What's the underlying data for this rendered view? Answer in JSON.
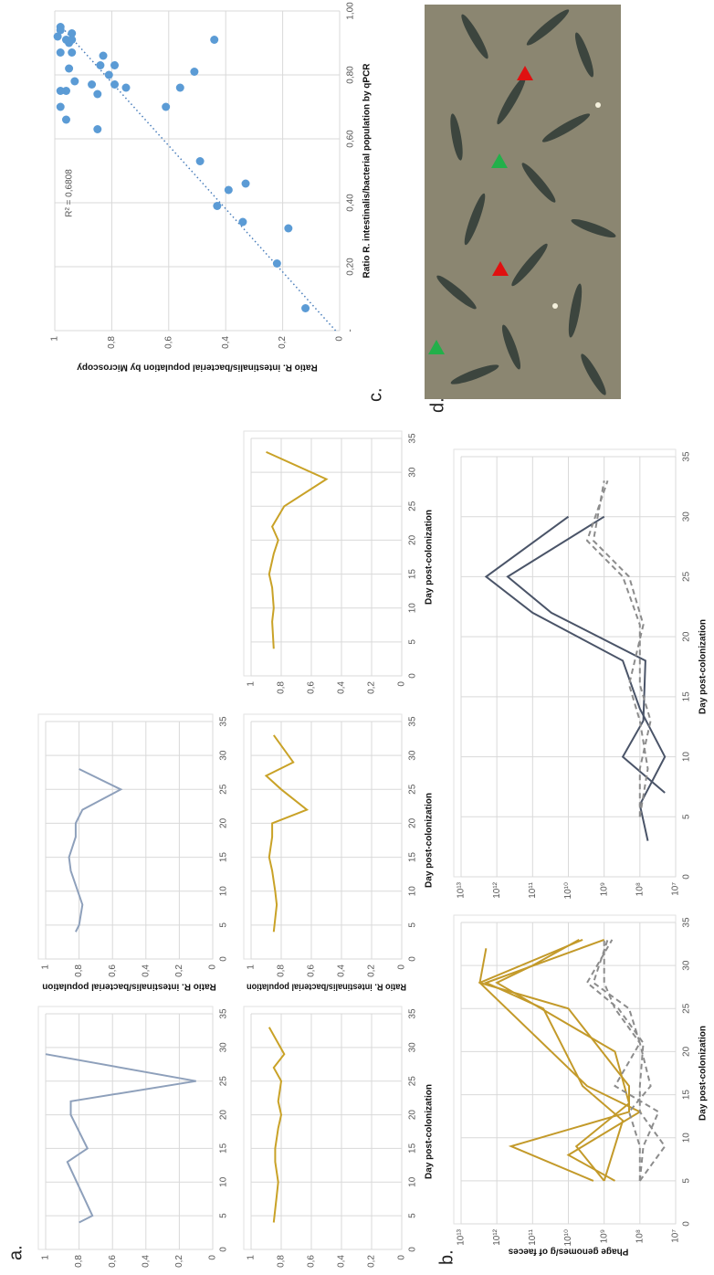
{
  "panel_labels": [
    "a.",
    "b.",
    "c.",
    "d."
  ],
  "chart_data": [
    {
      "type": "line",
      "xlim": [
        0,
        35
      ],
      "xticks": [
        0,
        5,
        10,
        15,
        20,
        25,
        30,
        35
      ],
      "ylim": [
        0,
        1
      ],
      "yticks": [
        0,
        {
          "value": 0.2,
          "label": "0,2"
        },
        {
          "value": 0.4,
          "label": "0,4"
        },
        {
          "value": 0.6,
          "label": "0,6"
        },
        {
          "value": 0.8,
          "label": "0,8"
        },
        1
      ],
      "grid": true,
      "series": [
        {
          "color": "#8ea0bb",
          "x": [
            4,
            5,
            13,
            15,
            20,
            22,
            25,
            29
          ],
          "values": [
            0.8,
            0.72,
            0.87,
            0.75,
            0.85,
            0.85,
            0.1,
            1.0
          ]
        }
      ]
    },
    {
      "type": "line",
      "xlim": [
        0,
        35
      ],
      "xticks": [
        0,
        5,
        10,
        15,
        20,
        25,
        30,
        35
      ],
      "ylim": [
        0,
        1
      ],
      "yticks": [
        0,
        {
          "value": 0.2,
          "label": "0,2"
        },
        {
          "value": 0.4,
          "label": "0,4"
        },
        {
          "value": 0.6,
          "label": "0,6"
        },
        {
          "value": 0.8,
          "label": "0,8"
        },
        1
      ],
      "grid": true,
      "y_label": "Ratio R. intestinalis/bacterial population",
      "series": [
        {
          "color": "#8ea0bb",
          "x": [
            4,
            5,
            8,
            13,
            15,
            18,
            20,
            22,
            25,
            28
          ],
          "values": [
            0.82,
            0.8,
            0.78,
            0.85,
            0.86,
            0.82,
            0.82,
            0.78,
            0.55,
            0.8
          ]
        }
      ]
    },
    {
      "type": "line",
      "xlim": [
        0,
        35
      ],
      "xticks": [
        0,
        5,
        10,
        15,
        20,
        25,
        30,
        35
      ],
      "ylim": [
        0,
        1
      ],
      "yticks": [
        0,
        {
          "value": 0.2,
          "label": "0,2"
        },
        {
          "value": 0.4,
          "label": "0,4"
        },
        {
          "value": 0.6,
          "label": "0,6"
        },
        {
          "value": 0.8,
          "label": "0,8"
        },
        1
      ],
      "grid": true,
      "x_label": "Day post-colonization",
      "series": [
        {
          "color": "#c9a227",
          "x": [
            4,
            8,
            10,
            13,
            15,
            18,
            20,
            22,
            25,
            27,
            29,
            33
          ],
          "values": [
            0.85,
            0.83,
            0.82,
            0.84,
            0.84,
            0.82,
            0.8,
            0.82,
            0.8,
            0.85,
            0.78,
            0.88
          ]
        }
      ]
    },
    {
      "type": "line",
      "xlim": [
        0,
        35
      ],
      "xticks": [
        0,
        5,
        10,
        15,
        20,
        25,
        30,
        35
      ],
      "ylim": [
        0,
        1
      ],
      "yticks": [
        0,
        {
          "value": 0.2,
          "label": "0,2"
        },
        {
          "value": 0.4,
          "label": "0,4"
        },
        {
          "value": 0.6,
          "label": "0,6"
        },
        {
          "value": 0.8,
          "label": "0,8"
        },
        1
      ],
      "grid": true,
      "x_label": "Day post-colonization",
      "y_label": "Ratio R. intestinalis/bacterial population",
      "series": [
        {
          "color": "#c9a227",
          "x": [
            4,
            8,
            10,
            13,
            15,
            18,
            20,
            22,
            25,
            27,
            29,
            33
          ],
          "values": [
            0.85,
            0.83,
            0.84,
            0.86,
            0.88,
            0.86,
            0.86,
            0.63,
            0.8,
            0.9,
            0.72,
            0.85
          ]
        }
      ]
    },
    {
      "type": "line",
      "xlim": [
        0,
        35
      ],
      "xticks": [
        0,
        5,
        10,
        15,
        20,
        25,
        30,
        35
      ],
      "ylim": [
        0,
        1
      ],
      "yticks": [
        0,
        {
          "value": 0.2,
          "label": "0,2"
        },
        {
          "value": 0.4,
          "label": "0,4"
        },
        {
          "value": 0.6,
          "label": "0,6"
        },
        {
          "value": 0.8,
          "label": "0,8"
        },
        1
      ],
      "grid": true,
      "x_label": "Day post-colonization",
      "series": [
        {
          "color": "#c9a227",
          "x": [
            4,
            8,
            10,
            13,
            15,
            18,
            20,
            22,
            25,
            29,
            33
          ],
          "values": [
            0.85,
            0.86,
            0.85,
            0.86,
            0.88,
            0.85,
            0.82,
            0.86,
            0.78,
            0.5,
            0.9
          ]
        }
      ]
    },
    {
      "type": "line",
      "ylog": true,
      "xlim": [
        0,
        35
      ],
      "xticks": [
        0,
        5,
        10,
        15,
        20,
        25,
        30,
        35
      ],
      "ylim": [
        10000000.0,
        10000000000000.0
      ],
      "yticks": [
        {
          "value": 10000000.0,
          "label": "10⁷"
        },
        {
          "value": 100000000.0,
          "label": "10⁸"
        },
        {
          "value": 1000000000.0,
          "label": "10⁹"
        },
        {
          "value": 10000000000.0,
          "label": "10¹⁰"
        },
        {
          "value": 100000000000.0,
          "label": "10¹¹"
        },
        {
          "value": 1000000000000.0,
          "label": "10¹²"
        },
        {
          "value": 10000000000000.0,
          "label": "10¹³"
        }
      ],
      "grid": true,
      "x_label": "Day post-colonization",
      "y_label": "Phage genomes/g of faeces",
      "series": [
        {
          "color": "#c39a2a",
          "x": [
            5,
            9,
            13,
            16,
            25,
            28,
            32
          ],
          "values": [
            2000000000.0,
            400000000000.0,
            200000000.0,
            200000000.0,
            10000000000.0,
            3000000000000.0,
            2000000000000.0
          ]
        },
        {
          "color": "#c39a2a",
          "x": [
            5,
            8,
            13,
            16,
            28,
            33
          ],
          "values": [
            500000000.0,
            10000000000.0,
            100000000.0,
            3000000000.0,
            3000000000000.0,
            4000000000.0
          ]
        },
        {
          "color": "#c39a2a",
          "x": [
            5,
            9,
            14,
            20,
            28,
            30,
            33
          ],
          "values": [
            1000000000.0,
            6000000000.0,
            200000000.0,
            500000000.0,
            1000000000000.0,
            100000000000.0,
            5000000000.0
          ]
        },
        {
          "color": "#c39a2a",
          "x": [
            5,
            12,
            16,
            25,
            28,
            33
          ],
          "values": [
            1000000000.0,
            300000000.0,
            4000000000.0,
            50000000000.0,
            2000000000000.0,
            1000000000.0
          ]
        },
        {
          "color": "#8c8c8c",
          "style": "dashed",
          "x": [
            5,
            9,
            13,
            16,
            21,
            25,
            28,
            33
          ],
          "values": [
            100000000.0,
            20000000.0,
            100000000.0,
            100000000.0,
            80000000.0,
            400000000.0,
            3000000000.0,
            600000000.0
          ]
        },
        {
          "color": "#8c8c8c",
          "style": "dashed",
          "x": [
            5,
            9,
            13,
            16,
            21,
            25,
            28,
            33
          ],
          "values": [
            100000000.0,
            80000000.0,
            30000000.0,
            500000000.0,
            100000000.0,
            200000000.0,
            2000000000.0,
            800000000.0
          ]
        },
        {
          "color": "#8c8c8c",
          "style": "dashed",
          "x": [
            5,
            9,
            13,
            16,
            21,
            25,
            28,
            33
          ],
          "values": [
            100000000.0,
            100000000.0,
            200000000.0,
            50000000.0,
            100000000.0,
            500000000.0,
            1000000000.0,
            1000000000.0
          ]
        }
      ]
    },
    {
      "type": "line",
      "ylog": true,
      "xlim": [
        0,
        35
      ],
      "xticks": [
        0,
        5,
        10,
        15,
        20,
        25,
        30,
        35
      ],
      "ylim": [
        10000000.0,
        10000000000000.0
      ],
      "yticks": [
        {
          "value": 10000000.0,
          "label": "10⁷"
        },
        {
          "value": 100000000.0,
          "label": "10⁸"
        },
        {
          "value": 1000000000.0,
          "label": "10⁹"
        },
        {
          "value": 10000000000.0,
          "label": "10¹⁰"
        },
        {
          "value": 100000000000.0,
          "label": "10¹¹"
        },
        {
          "value": 1000000000000.0,
          "label": "10¹²"
        },
        {
          "value": 10000000000000.0,
          "label": "10¹³"
        }
      ],
      "grid": true,
      "x_label": "Day post-colonization",
      "series": [
        {
          "color": "#4a5468",
          "x": [
            3,
            6,
            10,
            14,
            18,
            22,
            25,
            30
          ],
          "values": [
            60000000.0,
            100000000.0,
            20000000.0,
            100000000.0,
            300000000.0,
            100000000000.0,
            2000000000000.0,
            10000000000.0
          ]
        },
        {
          "color": "#4a5468",
          "x": [
            7,
            10,
            13,
            18,
            22,
            25,
            30
          ],
          "values": [
            20000000.0,
            300000000.0,
            80000000.0,
            70000000.0,
            30000000000.0,
            500000000000.0,
            1000000000.0
          ]
        },
        {
          "color": "#8c8c8c",
          "style": "dashed",
          "x": [
            5,
            9,
            13,
            16,
            21,
            25,
            28,
            33
          ],
          "values": [
            100000000.0,
            100000000.0,
            50000000.0,
            100000000.0,
            100000000.0,
            300000000.0,
            3000000000.0,
            800000000.0
          ]
        },
        {
          "color": "#8c8c8c",
          "style": "dashed",
          "x": [
            5,
            9,
            13,
            16,
            21,
            25,
            28,
            33
          ],
          "values": [
            100000000.0,
            60000000.0,
            100000000.0,
            200000000.0,
            80000000.0,
            200000000.0,
            2000000000.0,
            1000000000.0
          ]
        }
      ]
    },
    {
      "type": "scatter",
      "color": "#5b9bd5",
      "grid": true,
      "xlim": [
        0,
        1
      ],
      "xticks": [
        {
          "value": 0,
          "label": "-"
        },
        {
          "value": 0.2,
          "label": "0,20"
        },
        {
          "value": 0.4,
          "label": "0,40"
        },
        {
          "value": 0.6,
          "label": "0,60"
        },
        {
          "value": 0.8,
          "label": "0,80"
        },
        {
          "value": 1,
          "label": "1,00"
        }
      ],
      "ylim": [
        0,
        1
      ],
      "yticks": [
        0,
        {
          "value": 0.2,
          "label": "0,2"
        },
        {
          "value": 0.4,
          "label": "0,4"
        },
        {
          "value": 0.6,
          "label": "0,6"
        },
        {
          "value": 0.8,
          "label": "0,8"
        },
        1
      ],
      "x_label": "Ratio R. intestinalis/bacterial population by qPCR",
      "y_label": "Ratio R. intestinalis/bacterial population by Microscopy",
      "trendline": {
        "style": "dotted",
        "label": "R² = 0,6808"
      },
      "x": [
        0.07,
        0.21,
        0.32,
        0.34,
        0.39,
        0.44,
        0.46,
        0.53,
        0.63,
        0.7,
        0.7,
        0.75,
        0.74,
        0.66,
        0.76,
        0.76,
        0.81,
        0.77,
        0.75,
        0.78,
        0.83,
        0.8,
        0.77,
        0.83,
        0.86,
        0.82,
        0.87,
        0.9,
        0.87,
        0.92,
        0.93,
        0.91,
        0.91,
        0.94,
        0.95,
        0.91
      ],
      "values": [
        0.12,
        0.22,
        0.18,
        0.34,
        0.43,
        0.39,
        0.33,
        0.49,
        0.85,
        0.61,
        0.98,
        0.96,
        0.85,
        0.96,
        0.56,
        0.75,
        0.51,
        0.87,
        0.98,
        0.93,
        0.79,
        0.81,
        0.79,
        0.84,
        0.83,
        0.95,
        0.94,
        0.95,
        0.98,
        0.99,
        0.94,
        0.96,
        0.44,
        0.98,
        0.98,
        0.94
      ]
    }
  ]
}
